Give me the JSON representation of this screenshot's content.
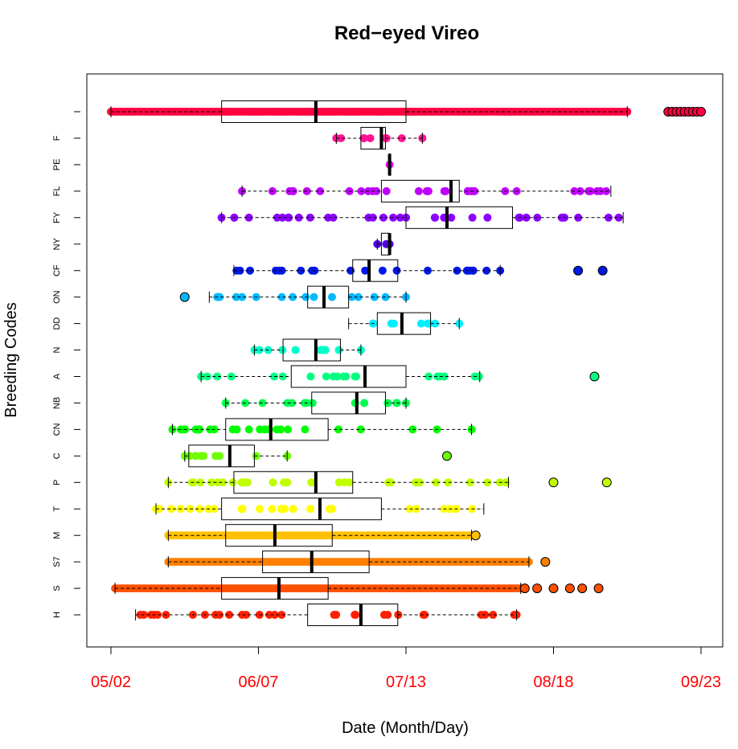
{
  "chart_data": {
    "type": "boxplot",
    "title": "Red−eyed Vireo",
    "xlabel": "Date (Month/Day)",
    "ylabel": "Breeding Codes",
    "x_ticks": [
      "05/02",
      "06/07",
      "07/13",
      "08/18",
      "09/23"
    ],
    "xtick_color": "#ff0000",
    "orientation": "horizontal",
    "categories": [
      {
        "code": "",
        "color": "#ff0040",
        "whisker": [
          "05/02",
          "09/05"
        ],
        "box": [
          "05/29",
          "07/13"
        ],
        "median": "06/21",
        "outliers": [
          "09/15",
          "09/16",
          "09/17",
          "09/18",
          "09/19",
          "09/20",
          "09/21",
          "09/22",
          "09/23"
        ]
      },
      {
        "code": "F",
        "color": "#ff1493",
        "whisker": [
          "06/26",
          "07/17"
        ],
        "box": [
          "07/02",
          "07/08"
        ],
        "median": "07/07",
        "outliers": []
      },
      {
        "code": "PE",
        "color": "#ff00ff",
        "whisker": [
          "07/09",
          "07/09"
        ],
        "box": [
          "07/09",
          "07/09"
        ],
        "median": "07/09",
        "outliers": []
      },
      {
        "code": "FL",
        "color": "#c000ff",
        "whisker": [
          "06/03",
          "09/01"
        ],
        "box": [
          "07/07",
          "07/26"
        ],
        "median": "07/24",
        "outliers": []
      },
      {
        "code": "FY",
        "color": "#8c00ff",
        "whisker": [
          "05/29",
          "09/04"
        ],
        "box": [
          "07/13",
          "08/08"
        ],
        "median": "07/23",
        "outliers": []
      },
      {
        "code": "NY",
        "color": "#5000e0",
        "whisker": [
          "07/06",
          "07/09"
        ],
        "box": [
          "07/07",
          "07/09"
        ],
        "median": "07/09",
        "outliers": []
      },
      {
        "code": "CF",
        "color": "#0018e8",
        "whisker": [
          "06/01",
          "08/05"
        ],
        "box": [
          "06/30",
          "07/11"
        ],
        "median": "07/04",
        "outliers": [
          "08/24",
          "08/30"
        ]
      },
      {
        "code": "ON",
        "color": "#00b8ff",
        "whisker": [
          "05/26",
          "07/13"
        ],
        "box": [
          "06/19",
          "06/29"
        ],
        "median": "06/23",
        "outliers": [
          "05/20"
        ]
      },
      {
        "code": "DD",
        "color": "#00f0ff",
        "whisker": [
          "06/29",
          "07/26"
        ],
        "box": [
          "07/06",
          "07/19"
        ],
        "median": "07/12",
        "outliers": []
      },
      {
        "code": "N",
        "color": "#00ffc8",
        "whisker": [
          "06/06",
          "07/02"
        ],
        "box": [
          "06/13",
          "06/27"
        ],
        "median": "06/21",
        "outliers": []
      },
      {
        "code": "A",
        "color": "#00ff80",
        "whisker": [
          "05/24",
          "07/31"
        ],
        "box": [
          "06/15",
          "07/13"
        ],
        "median": "07/03",
        "outliers": [
          "08/28"
        ]
      },
      {
        "code": "NB",
        "color": "#00ff50",
        "whisker": [
          "05/30",
          "07/13"
        ],
        "box": [
          "06/20",
          "07/08"
        ],
        "median": "07/01",
        "outliers": []
      },
      {
        "code": "CN",
        "color": "#00ff00",
        "whisker": [
          "05/17",
          "07/29"
        ],
        "box": [
          "05/30",
          "06/24"
        ],
        "median": "06/10",
        "outliers": []
      },
      {
        "code": "C",
        "color": "#70ff00",
        "whisker": [
          "05/20",
          "06/14"
        ],
        "box": [
          "05/21",
          "06/06"
        ],
        "median": "05/31",
        "outliers": [
          "07/23"
        ]
      },
      {
        "code": "P",
        "color": "#c0ff00",
        "whisker": [
          "05/16",
          "08/07"
        ],
        "box": [
          "06/01",
          "06/30"
        ],
        "median": "06/21",
        "outliers": [
          "08/18",
          "08/31"
        ]
      },
      {
        "code": "T",
        "color": "#ffff00",
        "whisker": [
          "05/13",
          "08/01"
        ],
        "box": [
          "05/29",
          "07/07"
        ],
        "median": "06/22",
        "outliers": []
      },
      {
        "code": "M",
        "color": "#ffc000",
        "whisker": [
          "05/16",
          "07/29"
        ],
        "box": [
          "05/30",
          "06/25"
        ],
        "median": "06/11",
        "outliers": [
          "07/30"
        ]
      },
      {
        "code": "S7",
        "color": "#ff8000",
        "whisker": [
          "05/16",
          "08/12"
        ],
        "box": [
          "06/08",
          "07/04"
        ],
        "median": "06/20",
        "outliers": [
          "08/16"
        ]
      },
      {
        "code": "S",
        "color": "#ff5000",
        "whisker": [
          "05/03",
          "08/10"
        ],
        "box": [
          "05/29",
          "06/24"
        ],
        "median": "06/12",
        "outliers": [
          "08/11",
          "08/14",
          "08/18",
          "08/22",
          "08/25",
          "08/29"
        ]
      },
      {
        "code": "H",
        "color": "#ff2000",
        "whisker": [
          "05/08",
          "08/09"
        ],
        "box": [
          "06/19",
          "07/11"
        ],
        "median": "07/02",
        "outliers": []
      }
    ],
    "xlim": [
      "05/02",
      "09/23"
    ],
    "grid": false,
    "legend": "none"
  }
}
